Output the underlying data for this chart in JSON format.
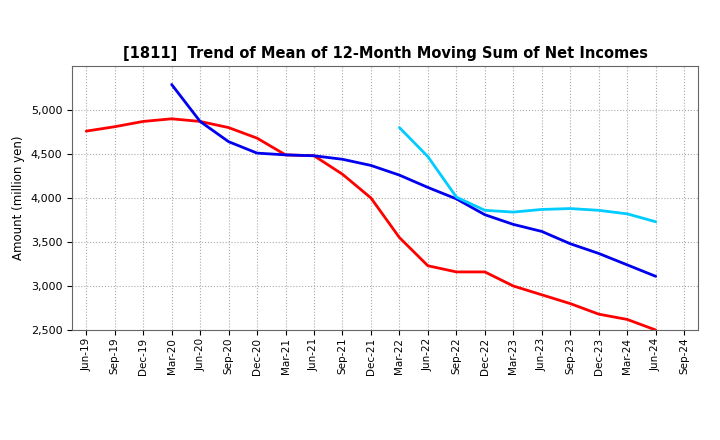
{
  "title": "[1811]  Trend of Mean of 12-Month Moving Sum of Net Incomes",
  "ylabel": "Amount (million yen)",
  "ylim": [
    2500,
    5500
  ],
  "yticks": [
    2500,
    3000,
    3500,
    4000,
    4500,
    5000
  ],
  "background_color": "#ffffff",
  "grid_color": "#aaaaaa",
  "x_labels": [
    "Jun-19",
    "Sep-19",
    "Dec-19",
    "Mar-20",
    "Jun-20",
    "Sep-20",
    "Dec-20",
    "Mar-21",
    "Jun-21",
    "Sep-21",
    "Dec-21",
    "Mar-22",
    "Jun-22",
    "Sep-22",
    "Dec-22",
    "Mar-23",
    "Jun-23",
    "Sep-23",
    "Dec-23",
    "Mar-24",
    "Jun-24",
    "Sep-24"
  ],
  "series": {
    "3 Years": {
      "color": "#ff0000",
      "data": [
        4760,
        4810,
        4870,
        4900,
        4870,
        4800,
        4680,
        4490,
        4480,
        4270,
        4000,
        3550,
        3230,
        3160,
        3160,
        3000,
        2900,
        2800,
        2680,
        2620,
        2500,
        null
      ]
    },
    "5 Years": {
      "color": "#0000ee",
      "data": [
        null,
        null,
        null,
        5290,
        4870,
        4640,
        4510,
        4490,
        4480,
        4440,
        4370,
        4260,
        4120,
        3990,
        3810,
        3700,
        3620,
        3480,
        3370,
        3240,
        3110,
        null
      ]
    },
    "7 Years": {
      "color": "#00ccff",
      "data": [
        null,
        null,
        null,
        null,
        null,
        null,
        null,
        null,
        null,
        null,
        null,
        4800,
        4470,
        4010,
        3860,
        3840,
        3870,
        3880,
        3860,
        3820,
        3730,
        null
      ]
    },
    "10 Years": {
      "color": "#00aa00",
      "data": [
        null,
        null,
        null,
        null,
        null,
        null,
        null,
        null,
        null,
        null,
        null,
        null,
        null,
        null,
        null,
        null,
        null,
        null,
        null,
        null,
        null,
        null
      ]
    }
  }
}
